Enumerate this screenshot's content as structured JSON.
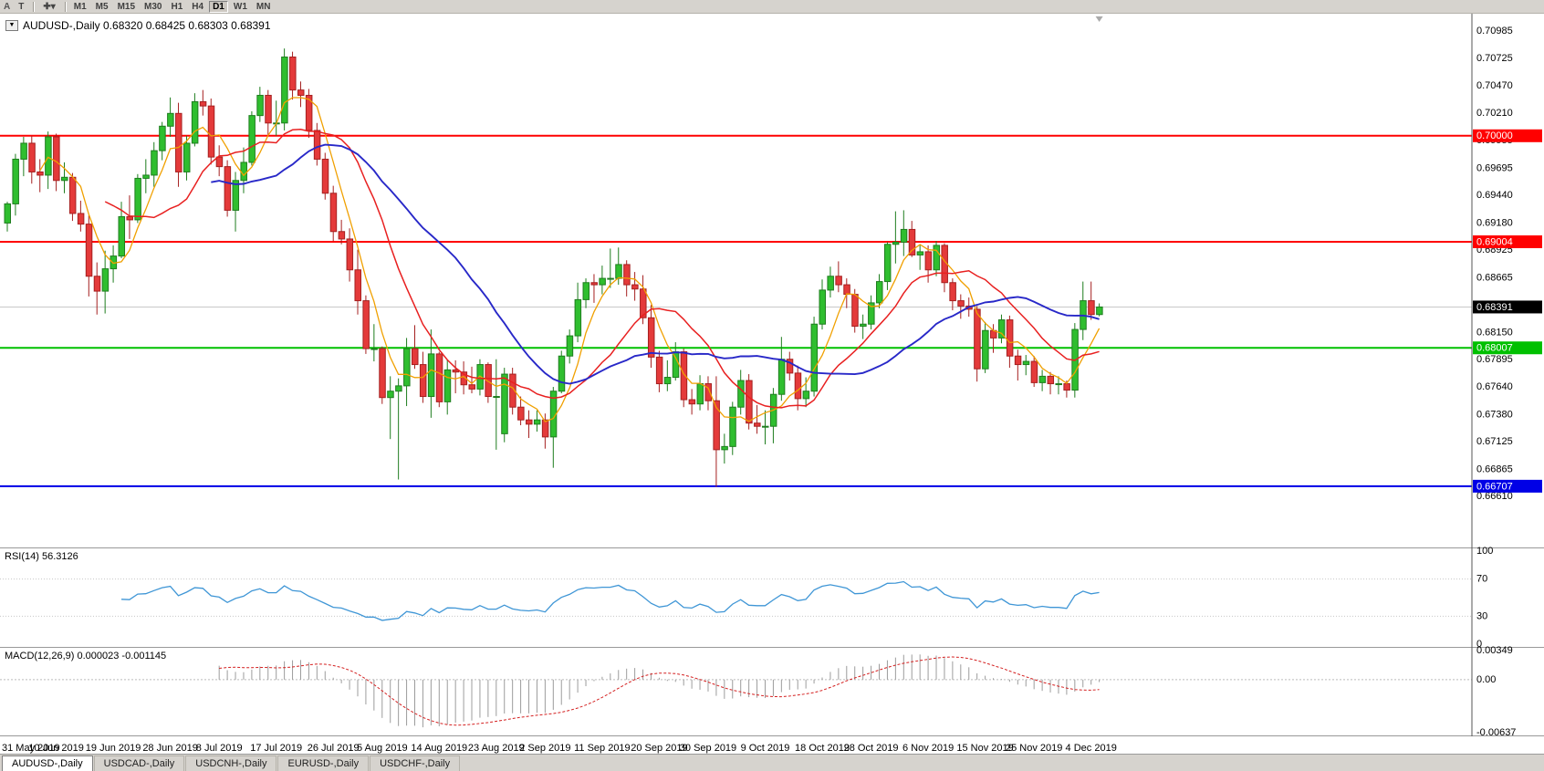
{
  "toolbar": {
    "left_buttons": [
      "A",
      "T"
    ],
    "timeframes": [
      "M1",
      "M5",
      "M15",
      "M30",
      "H1",
      "H4",
      "D1",
      "W1",
      "MN"
    ],
    "active_timeframe": "D1"
  },
  "tabs": [
    {
      "label": "AUDUSD-,Daily",
      "active": true
    },
    {
      "label": "USDCAD-,Daily",
      "active": false
    },
    {
      "label": "USDCNH-,Daily",
      "active": false
    },
    {
      "label": "EURUSD-,Daily",
      "active": false
    },
    {
      "label": "USDCHF-,Daily",
      "active": false
    }
  ],
  "chart_data": {
    "type": "candlestick",
    "symbol": "AUDUSD-",
    "timeframe": "Daily",
    "title_text": "AUDUSD-,Daily 0.68320 0.68425 0.68303 0.68391",
    "ohlc": {
      "open": "0.68320",
      "high": "0.68425",
      "low": "0.68303",
      "close": "0.68391"
    },
    "ylim": [
      0.6614,
      0.7113
    ],
    "price_axis": [
      "0.70985",
      "0.70725",
      "0.70470",
      "0.70210",
      "0.69955",
      "0.69695",
      "0.69440",
      "0.69180",
      "0.68925",
      "0.68665",
      "0.68410",
      "0.68150",
      "0.67895",
      "0.67640",
      "0.67380",
      "0.67125",
      "0.66865",
      "0.66610"
    ],
    "x_ticks": [
      {
        "index": 0,
        "label": "31 May 2019"
      },
      {
        "index": 6,
        "label": "10 Jun 2019"
      },
      {
        "index": 13,
        "label": "19 Jun 2019"
      },
      {
        "index": 20,
        "label": "28 Jun 2019"
      },
      {
        "index": 26,
        "label": "8 Jul 2019"
      },
      {
        "index": 33,
        "label": "17 Jul 2019"
      },
      {
        "index": 40,
        "label": "26 Jul 2019"
      },
      {
        "index": 46,
        "label": "5 Aug 2019"
      },
      {
        "index": 53,
        "label": "14 Aug 2019"
      },
      {
        "index": 60,
        "label": "23 Aug 2019"
      },
      {
        "index": 66,
        "label": "2 Sep 2019"
      },
      {
        "index": 73,
        "label": "11 Sep 2019"
      },
      {
        "index": 80,
        "label": "20 Sep 2019"
      },
      {
        "index": 86,
        "label": "30 Sep 2019"
      },
      {
        "index": 93,
        "label": "9 Oct 2019"
      },
      {
        "index": 100,
        "label": "18 Oct 2019"
      },
      {
        "index": 106,
        "label": "28 Oct 2019"
      },
      {
        "index": 113,
        "label": "6 Nov 2019"
      },
      {
        "index": 120,
        "label": "15 Nov 2019"
      },
      {
        "index": 126,
        "label": "25 Nov 2019"
      },
      {
        "index": 133,
        "label": "4 Dec 2019"
      }
    ],
    "dates": [
      "2019-05-31",
      "2019-06-03",
      "2019-06-04",
      "2019-06-05",
      "2019-06-06",
      "2019-06-07",
      "2019-06-10",
      "2019-06-11",
      "2019-06-12",
      "2019-06-13",
      "2019-06-14",
      "2019-06-17",
      "2019-06-18",
      "2019-06-19",
      "2019-06-20",
      "2019-06-21",
      "2019-06-24",
      "2019-06-25",
      "2019-06-26",
      "2019-06-27",
      "2019-06-28",
      "2019-07-01",
      "2019-07-02",
      "2019-07-03",
      "2019-07-04",
      "2019-07-05",
      "2019-07-08",
      "2019-07-09",
      "2019-07-10",
      "2019-07-11",
      "2019-07-12",
      "2019-07-15",
      "2019-07-16",
      "2019-07-17",
      "2019-07-18",
      "2019-07-19",
      "2019-07-22",
      "2019-07-23",
      "2019-07-24",
      "2019-07-25",
      "2019-07-26",
      "2019-07-29",
      "2019-07-30",
      "2019-07-31",
      "2019-08-01",
      "2019-08-02",
      "2019-08-05",
      "2019-08-06",
      "2019-08-07",
      "2019-08-08",
      "2019-08-09",
      "2019-08-12",
      "2019-08-13",
      "2019-08-14",
      "2019-08-15",
      "2019-08-16",
      "2019-08-19",
      "2019-08-20",
      "2019-08-21",
      "2019-08-22",
      "2019-08-23",
      "2019-08-26",
      "2019-08-27",
      "2019-08-28",
      "2019-08-29",
      "2019-08-30",
      "2019-09-02",
      "2019-09-03",
      "2019-09-04",
      "2019-09-05",
      "2019-09-06",
      "2019-09-09",
      "2019-09-10",
      "2019-09-11",
      "2019-09-12",
      "2019-09-13",
      "2019-09-16",
      "2019-09-17",
      "2019-09-18",
      "2019-09-19",
      "2019-09-20",
      "2019-09-23",
      "2019-09-24",
      "2019-09-25",
      "2019-09-26",
      "2019-09-27",
      "2019-09-30",
      "2019-10-01",
      "2019-10-02",
      "2019-10-03",
      "2019-10-04",
      "2019-10-07",
      "2019-10-08",
      "2019-10-09",
      "2019-10-10",
      "2019-10-11",
      "2019-10-14",
      "2019-10-15",
      "2019-10-16",
      "2019-10-17",
      "2019-10-18",
      "2019-10-21",
      "2019-10-22",
      "2019-10-23",
      "2019-10-24",
      "2019-10-25",
      "2019-10-28",
      "2019-10-29",
      "2019-10-30",
      "2019-10-31",
      "2019-11-01",
      "2019-11-04",
      "2019-11-05",
      "2019-11-06",
      "2019-11-07",
      "2019-11-08",
      "2019-11-11",
      "2019-11-12",
      "2019-11-13",
      "2019-11-14",
      "2019-11-15",
      "2019-11-18",
      "2019-11-19",
      "2019-11-20",
      "2019-11-21",
      "2019-11-22",
      "2019-11-25",
      "2019-11-26",
      "2019-11-27",
      "2019-11-28",
      "2019-11-29",
      "2019-12-02",
      "2019-12-03",
      "2019-12-04",
      "2019-12-05"
    ],
    "candles": [
      [
        0.6918,
        0.6938,
        0.691,
        0.6936
      ],
      [
        0.6936,
        0.6983,
        0.6925,
        0.6978
      ],
      [
        0.6978,
        0.6999,
        0.6962,
        0.6993
      ],
      [
        0.6993,
        0.7,
        0.6955,
        0.6966
      ],
      [
        0.6966,
        0.6978,
        0.6947,
        0.6963
      ],
      [
        0.6963,
        0.7004,
        0.695,
        0.6999
      ],
      [
        0.6999,
        0.7002,
        0.6948,
        0.6958
      ],
      [
        0.6958,
        0.6975,
        0.6946,
        0.6961
      ],
      [
        0.6961,
        0.6965,
        0.692,
        0.6927
      ],
      [
        0.6927,
        0.6939,
        0.691,
        0.6917
      ],
      [
        0.6917,
        0.6925,
        0.6849,
        0.6868
      ],
      [
        0.6868,
        0.6881,
        0.6832,
        0.6854
      ],
      [
        0.6854,
        0.6892,
        0.6833,
        0.6875
      ],
      [
        0.6875,
        0.6897,
        0.6862,
        0.6887
      ],
      [
        0.6887,
        0.6938,
        0.6885,
        0.6924
      ],
      [
        0.6924,
        0.6944,
        0.6903,
        0.6921
      ],
      [
        0.6921,
        0.6964,
        0.6918,
        0.696
      ],
      [
        0.696,
        0.6978,
        0.6946,
        0.6963
      ],
      [
        0.6963,
        0.6994,
        0.6952,
        0.6986
      ],
      [
        0.6986,
        0.7013,
        0.6977,
        0.7009
      ],
      [
        0.7009,
        0.7036,
        0.6999,
        0.7021
      ],
      [
        0.7021,
        0.7031,
        0.6952,
        0.6966
      ],
      [
        0.6966,
        0.7,
        0.6958,
        0.6993
      ],
      [
        0.6993,
        0.704,
        0.699,
        0.7032
      ],
      [
        0.7032,
        0.7043,
        0.7019,
        0.7028
      ],
      [
        0.7028,
        0.7035,
        0.6973,
        0.698
      ],
      [
        0.698,
        0.6991,
        0.6962,
        0.6971
      ],
      [
        0.6971,
        0.6977,
        0.6924,
        0.693
      ],
      [
        0.693,
        0.6966,
        0.691,
        0.6958
      ],
      [
        0.6958,
        0.6989,
        0.6946,
        0.6975
      ],
      [
        0.6975,
        0.7023,
        0.6972,
        0.7019
      ],
      [
        0.7019,
        0.7046,
        0.7013,
        0.7038
      ],
      [
        0.7038,
        0.7043,
        0.7001,
        0.7012
      ],
      [
        0.7012,
        0.7033,
        0.7,
        0.7012
      ],
      [
        0.7012,
        0.7082,
        0.7005,
        0.7074
      ],
      [
        0.7074,
        0.7079,
        0.7034,
        0.7043
      ],
      [
        0.7043,
        0.7051,
        0.7027,
        0.7038
      ],
      [
        0.7038,
        0.7044,
        0.6998,
        0.7005
      ],
      [
        0.7005,
        0.7012,
        0.6972,
        0.6978
      ],
      [
        0.6978,
        0.6984,
        0.694,
        0.6946
      ],
      [
        0.6946,
        0.6953,
        0.6901,
        0.691
      ],
      [
        0.691,
        0.6921,
        0.6898,
        0.6903
      ],
      [
        0.6903,
        0.6913,
        0.6863,
        0.6874
      ],
      [
        0.6874,
        0.6893,
        0.6832,
        0.6845
      ],
      [
        0.6845,
        0.685,
        0.6795,
        0.68
      ],
      [
        0.68,
        0.6823,
        0.6788,
        0.68
      ],
      [
        0.68,
        0.6802,
        0.6748,
        0.6754
      ],
      [
        0.6754,
        0.6774,
        0.6715,
        0.676
      ],
      [
        0.676,
        0.6772,
        0.6677,
        0.6765
      ],
      [
        0.6765,
        0.681,
        0.6746,
        0.68
      ],
      [
        0.68,
        0.6822,
        0.6781,
        0.6785
      ],
      [
        0.6785,
        0.6797,
        0.6749,
        0.6755
      ],
      [
        0.6755,
        0.6818,
        0.6735,
        0.6795
      ],
      [
        0.6795,
        0.6797,
        0.6745,
        0.675
      ],
      [
        0.675,
        0.6789,
        0.6738,
        0.678
      ],
      [
        0.678,
        0.6789,
        0.6758,
        0.6778
      ],
      [
        0.6778,
        0.6788,
        0.6757,
        0.6766
      ],
      [
        0.6766,
        0.6783,
        0.6758,
        0.6762
      ],
      [
        0.6762,
        0.679,
        0.6756,
        0.6785
      ],
      [
        0.6785,
        0.6787,
        0.6749,
        0.6755
      ],
      [
        0.6755,
        0.679,
        0.6705,
        0.6755
      ],
      [
        0.672,
        0.6782,
        0.6712,
        0.6776
      ],
      [
        0.6776,
        0.6782,
        0.6738,
        0.6745
      ],
      [
        0.6745,
        0.6755,
        0.6728,
        0.6733
      ],
      [
        0.6733,
        0.6742,
        0.6716,
        0.6729
      ],
      [
        0.6729,
        0.6742,
        0.6722,
        0.6733
      ],
      [
        0.6733,
        0.6739,
        0.6706,
        0.6717
      ],
      [
        0.6717,
        0.6764,
        0.6688,
        0.676
      ],
      [
        0.676,
        0.6798,
        0.6758,
        0.6793
      ],
      [
        0.6793,
        0.6818,
        0.6786,
        0.6812
      ],
      [
        0.6812,
        0.6862,
        0.6806,
        0.6846
      ],
      [
        0.6846,
        0.6866,
        0.6838,
        0.6862
      ],
      [
        0.6862,
        0.687,
        0.6843,
        0.686
      ],
      [
        0.686,
        0.6878,
        0.6851,
        0.6866
      ],
      [
        0.6866,
        0.6894,
        0.6857,
        0.6866
      ],
      [
        0.6866,
        0.6895,
        0.686,
        0.6879
      ],
      [
        0.6879,
        0.6883,
        0.6849,
        0.686
      ],
      [
        0.686,
        0.6872,
        0.6845,
        0.6856
      ],
      [
        0.6856,
        0.6869,
        0.6823,
        0.6829
      ],
      [
        0.6829,
        0.6841,
        0.6782,
        0.6792
      ],
      [
        0.6792,
        0.6798,
        0.6759,
        0.6767
      ],
      [
        0.6767,
        0.6789,
        0.676,
        0.6773
      ],
      [
        0.6773,
        0.6806,
        0.677,
        0.6797
      ],
      [
        0.6797,
        0.68,
        0.6745,
        0.6752
      ],
      [
        0.6752,
        0.6762,
        0.6738,
        0.6748
      ],
      [
        0.6748,
        0.6775,
        0.6742,
        0.6767
      ],
      [
        0.6767,
        0.6774,
        0.6742,
        0.6751
      ],
      [
        0.6751,
        0.6774,
        0.667,
        0.6705
      ],
      [
        0.6705,
        0.672,
        0.6692,
        0.6708
      ],
      [
        0.6708,
        0.675,
        0.67,
        0.6745
      ],
      [
        0.6745,
        0.678,
        0.6738,
        0.677
      ],
      [
        0.677,
        0.6776,
        0.6724,
        0.673
      ],
      [
        0.673,
        0.6747,
        0.672,
        0.6727
      ],
      [
        0.6727,
        0.6742,
        0.671,
        0.6727
      ],
      [
        0.6727,
        0.6763,
        0.6711,
        0.6757
      ],
      [
        0.6757,
        0.6811,
        0.6751,
        0.679
      ],
      [
        0.679,
        0.6797,
        0.677,
        0.6777
      ],
      [
        0.6777,
        0.6784,
        0.6742,
        0.6753
      ],
      [
        0.6753,
        0.6773,
        0.6745,
        0.676
      ],
      [
        0.676,
        0.683,
        0.6755,
        0.6823
      ],
      [
        0.6823,
        0.6865,
        0.6818,
        0.6855
      ],
      [
        0.6855,
        0.6877,
        0.6848,
        0.6868
      ],
      [
        0.6868,
        0.6882,
        0.6853,
        0.686
      ],
      [
        0.686,
        0.6866,
        0.6838,
        0.6851
      ],
      [
        0.6851,
        0.6856,
        0.6815,
        0.6821
      ],
      [
        0.6821,
        0.6832,
        0.6809,
        0.6823
      ],
      [
        0.6823,
        0.685,
        0.6818,
        0.6843
      ],
      [
        0.6843,
        0.687,
        0.6838,
        0.6863
      ],
      [
        0.6863,
        0.69,
        0.6855,
        0.6898
      ],
      [
        0.6898,
        0.6929,
        0.688,
        0.69
      ],
      [
        0.69,
        0.693,
        0.6887,
        0.6912
      ],
      [
        0.6912,
        0.692,
        0.6886,
        0.6888
      ],
      [
        0.6888,
        0.6898,
        0.6874,
        0.6891
      ],
      [
        0.6891,
        0.6897,
        0.6862,
        0.6874
      ],
      [
        0.6874,
        0.6901,
        0.6868,
        0.6897
      ],
      [
        0.6897,
        0.6899,
        0.6853,
        0.6862
      ],
      [
        0.6862,
        0.6866,
        0.6836,
        0.6845
      ],
      [
        0.6845,
        0.6851,
        0.6828,
        0.684
      ],
      [
        0.684,
        0.6848,
        0.683,
        0.6837
      ],
      [
        0.6837,
        0.684,
        0.6769,
        0.6781
      ],
      [
        0.6781,
        0.6825,
        0.6777,
        0.6817
      ],
      [
        0.6817,
        0.6823,
        0.6796,
        0.681
      ],
      [
        0.681,
        0.6832,
        0.6805,
        0.6827
      ],
      [
        0.6827,
        0.6831,
        0.6782,
        0.6793
      ],
      [
        0.6793,
        0.6799,
        0.677,
        0.6785
      ],
      [
        0.6785,
        0.6794,
        0.6775,
        0.6788
      ],
      [
        0.6788,
        0.6793,
        0.6764,
        0.6768
      ],
      [
        0.6768,
        0.678,
        0.676,
        0.6774
      ],
      [
        0.6774,
        0.6778,
        0.6757,
        0.6767
      ],
      [
        0.6767,
        0.6774,
        0.6757,
        0.6767
      ],
      [
        0.6767,
        0.677,
        0.6754,
        0.6761
      ],
      [
        0.6761,
        0.6824,
        0.6754,
        0.6818
      ],
      [
        0.6818,
        0.6863,
        0.6808,
        0.6845
      ],
      [
        0.6845,
        0.6863,
        0.6827,
        0.6832
      ],
      [
        0.6832,
        0.68425,
        0.68303,
        0.68391
      ]
    ],
    "candle_colors": {
      "up": "#2FBE2F",
      "up_border": "#1E7D1E",
      "down": "#E43A3A",
      "down_border": "#A52020"
    },
    "ma_lines": [
      {
        "name": "fast",
        "period": 5,
        "color": "#F0A000"
      },
      {
        "name": "mid",
        "period": 13,
        "color": "#E82020"
      },
      {
        "name": "slow",
        "period": 26,
        "color": "#2828C8"
      }
    ],
    "hlines": [
      {
        "price": 0.7,
        "label": "0.70000",
        "color": "#FF0000"
      },
      {
        "price": 0.69004,
        "label": "0.69004",
        "color": "#FF0000"
      },
      {
        "price": 0.68007,
        "label": "0.68007",
        "color": "#00C000"
      },
      {
        "price": 0.66707,
        "label": "0.66707",
        "color": "#0000E6"
      }
    ],
    "current_price": {
      "value": 0.68391,
      "label": "0.68391",
      "box_color": "#000000"
    },
    "rsi": {
      "label": "RSI(14) 56.3126",
      "period": 14,
      "value": 56.3126,
      "levels": [
        70,
        30
      ],
      "scale_labels": [
        "100",
        "70",
        "30",
        "0"
      ],
      "color": "#3F96D6"
    },
    "macd": {
      "label": "MACD(12,26,9) 0.000023 -0.001145",
      "fast": 12,
      "slow": 26,
      "signal": 9,
      "values_text": [
        "0.000023",
        "-0.001145"
      ],
      "scale_labels": [
        "0.00349",
        "0.00",
        "-0.00637"
      ],
      "scale_max": 0.00349,
      "scale_min": -0.00637,
      "histogram_color": "#9C9C9C",
      "signal_color": "#D42020"
    }
  }
}
